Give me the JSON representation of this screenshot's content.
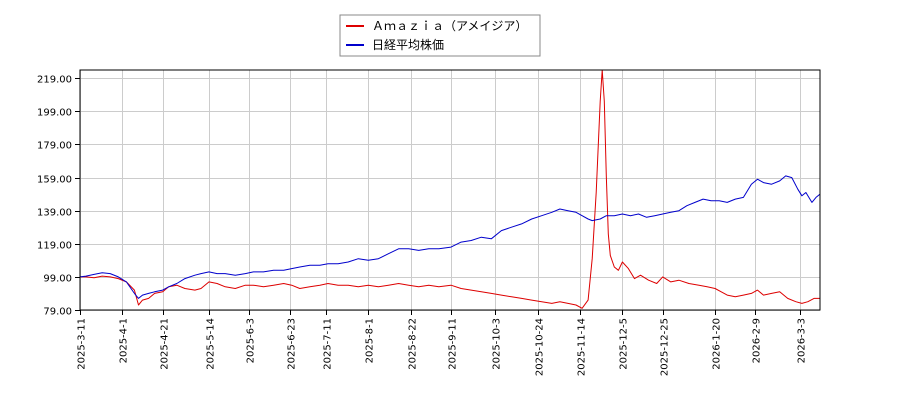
{
  "chart_data": {
    "type": "line",
    "title": "",
    "xlabel": "",
    "ylabel": "",
    "grid": true,
    "legend_position": "top-center",
    "ylim": [
      79.0,
      224.0
    ],
    "y_ticks": [
      "79.00",
      "99.00",
      "119.00",
      "139.00",
      "159.00",
      "179.00",
      "199.00",
      "219.00"
    ],
    "y_tick_values": [
      79,
      99,
      119,
      139,
      159,
      179,
      199,
      219
    ],
    "xlim": [
      "2025-03-11",
      "2026-03-13"
    ],
    "x_ticks": [
      "2025-3-11",
      "2025-4-1",
      "2025-4-21",
      "2025-5-14",
      "2025-6-3",
      "2025-6-23",
      "2025-7-11",
      "2025-8-1",
      "2025-8-22",
      "2025-9-11",
      "2025-10-3",
      "2025-10-24",
      "2025-11-14",
      "2025-12-5",
      "2025-12-25",
      "2026-1-20",
      "2026-2-9",
      "2026-3-3"
    ],
    "series": [
      {
        "name": "Ａｍａｚｉａ（アメイジア）",
        "color": "#dd0000",
        "points": [
          [
            "2025-03-11",
            99
          ],
          [
            "2025-03-14",
            99
          ],
          [
            "2025-03-18",
            98.5
          ],
          [
            "2025-03-22",
            99.5
          ],
          [
            "2025-03-26",
            99
          ],
          [
            "2025-03-30",
            98
          ],
          [
            "2025-04-03",
            96
          ],
          [
            "2025-04-07",
            91
          ],
          [
            "2025-04-09",
            82
          ],
          [
            "2025-04-11",
            85
          ],
          [
            "2025-04-14",
            86
          ],
          [
            "2025-04-17",
            89
          ],
          [
            "2025-04-21",
            90
          ],
          [
            "2025-04-24",
            93
          ],
          [
            "2025-04-28",
            94
          ],
          [
            "2025-05-02",
            92
          ],
          [
            "2025-05-07",
            91
          ],
          [
            "2025-05-10",
            92
          ],
          [
            "2025-05-14",
            96
          ],
          [
            "2025-05-18",
            95
          ],
          [
            "2025-05-22",
            93
          ],
          [
            "2025-05-27",
            92
          ],
          [
            "2025-06-01",
            94
          ],
          [
            "2025-06-05",
            94
          ],
          [
            "2025-06-10",
            93
          ],
          [
            "2025-06-15",
            94
          ],
          [
            "2025-06-20",
            95
          ],
          [
            "2025-06-24",
            94
          ],
          [
            "2025-06-28",
            92
          ],
          [
            "2025-07-03",
            93
          ],
          [
            "2025-07-08",
            94
          ],
          [
            "2025-07-12",
            95
          ],
          [
            "2025-07-17",
            94
          ],
          [
            "2025-07-22",
            94
          ],
          [
            "2025-07-27",
            93
          ],
          [
            "2025-08-01",
            94
          ],
          [
            "2025-08-06",
            93
          ],
          [
            "2025-08-11",
            94
          ],
          [
            "2025-08-16",
            95
          ],
          [
            "2025-08-21",
            94
          ],
          [
            "2025-08-26",
            93
          ],
          [
            "2025-08-31",
            94
          ],
          [
            "2025-09-05",
            93
          ],
          [
            "2025-09-11",
            94
          ],
          [
            "2025-09-16",
            92
          ],
          [
            "2025-09-21",
            91
          ],
          [
            "2025-09-26",
            90
          ],
          [
            "2025-10-01",
            89
          ],
          [
            "2025-10-06",
            88
          ],
          [
            "2025-10-11",
            87
          ],
          [
            "2025-10-16",
            86
          ],
          [
            "2025-10-21",
            85
          ],
          [
            "2025-10-26",
            84
          ],
          [
            "2025-10-31",
            83
          ],
          [
            "2025-11-04",
            84
          ],
          [
            "2025-11-08",
            83
          ],
          [
            "2025-11-12",
            82
          ],
          [
            "2025-11-15",
            80
          ],
          [
            "2025-11-18",
            85
          ],
          [
            "2025-11-20",
            110
          ],
          [
            "2025-11-22",
            150
          ],
          [
            "2025-11-24",
            205
          ],
          [
            "2025-11-25",
            224
          ],
          [
            "2025-11-26",
            205
          ],
          [
            "2025-11-27",
            160
          ],
          [
            "2025-11-28",
            125
          ],
          [
            "2025-11-29",
            112
          ],
          [
            "2025-12-01",
            105
          ],
          [
            "2025-12-03",
            103
          ],
          [
            "2025-12-05",
            108
          ],
          [
            "2025-12-08",
            104
          ],
          [
            "2025-12-11",
            98
          ],
          [
            "2025-12-14",
            100
          ],
          [
            "2025-12-18",
            97
          ],
          [
            "2025-12-22",
            95
          ],
          [
            "2025-12-25",
            99
          ],
          [
            "2025-12-29",
            96
          ],
          [
            "2026-01-02",
            97
          ],
          [
            "2026-01-07",
            95
          ],
          [
            "2026-01-12",
            94
          ],
          [
            "2026-01-16",
            93
          ],
          [
            "2026-01-20",
            92
          ],
          [
            "2026-01-23",
            90
          ],
          [
            "2026-01-26",
            88
          ],
          [
            "2026-01-30",
            87
          ],
          [
            "2026-02-03",
            88
          ],
          [
            "2026-02-07",
            89
          ],
          [
            "2026-02-10",
            91
          ],
          [
            "2026-02-13",
            88
          ],
          [
            "2026-02-17",
            89
          ],
          [
            "2026-02-21",
            90
          ],
          [
            "2026-02-25",
            86
          ],
          [
            "2026-03-01",
            84
          ],
          [
            "2026-03-04",
            83
          ],
          [
            "2026-03-07",
            84
          ],
          [
            "2026-03-10",
            86
          ],
          [
            "2026-03-13",
            86
          ]
        ]
      },
      {
        "name": "日経平均株価",
        "color": "#0000cc",
        "points": [
          [
            "2025-03-11",
            99
          ],
          [
            "2025-03-14",
            99.5
          ],
          [
            "2025-03-18",
            100.5
          ],
          [
            "2025-03-22",
            101.5
          ],
          [
            "2025-03-26",
            101
          ],
          [
            "2025-03-30",
            99
          ],
          [
            "2025-04-03",
            96
          ],
          [
            "2025-04-07",
            89
          ],
          [
            "2025-04-09",
            86
          ],
          [
            "2025-04-11",
            88
          ],
          [
            "2025-04-14",
            89
          ],
          [
            "2025-04-17",
            90
          ],
          [
            "2025-04-21",
            91
          ],
          [
            "2025-04-24",
            93
          ],
          [
            "2025-04-28",
            95
          ],
          [
            "2025-05-02",
            98
          ],
          [
            "2025-05-07",
            100
          ],
          [
            "2025-05-10",
            101
          ],
          [
            "2025-05-14",
            102
          ],
          [
            "2025-05-18",
            101
          ],
          [
            "2025-05-22",
            101
          ],
          [
            "2025-05-27",
            100
          ],
          [
            "2025-06-01",
            101
          ],
          [
            "2025-06-05",
            102
          ],
          [
            "2025-06-10",
            102
          ],
          [
            "2025-06-15",
            103
          ],
          [
            "2025-06-20",
            103
          ],
          [
            "2025-06-24",
            104
          ],
          [
            "2025-06-28",
            105
          ],
          [
            "2025-07-03",
            106
          ],
          [
            "2025-07-08",
            106
          ],
          [
            "2025-07-12",
            107
          ],
          [
            "2025-07-17",
            107
          ],
          [
            "2025-07-22",
            108
          ],
          [
            "2025-07-27",
            110
          ],
          [
            "2025-08-01",
            109
          ],
          [
            "2025-08-06",
            110
          ],
          [
            "2025-08-11",
            113
          ],
          [
            "2025-08-16",
            116
          ],
          [
            "2025-08-21",
            116
          ],
          [
            "2025-08-26",
            115
          ],
          [
            "2025-08-31",
            116
          ],
          [
            "2025-09-05",
            116
          ],
          [
            "2025-09-11",
            117
          ],
          [
            "2025-09-16",
            120
          ],
          [
            "2025-09-21",
            121
          ],
          [
            "2025-09-26",
            123
          ],
          [
            "2025-10-01",
            122
          ],
          [
            "2025-10-06",
            127
          ],
          [
            "2025-10-11",
            129
          ],
          [
            "2025-10-16",
            131
          ],
          [
            "2025-10-21",
            134
          ],
          [
            "2025-10-26",
            136
          ],
          [
            "2025-10-31",
            138
          ],
          [
            "2025-11-04",
            140
          ],
          [
            "2025-11-08",
            139
          ],
          [
            "2025-11-12",
            138
          ],
          [
            "2025-11-15",
            136
          ],
          [
            "2025-11-18",
            134
          ],
          [
            "2025-11-20",
            133
          ],
          [
            "2025-11-24",
            134
          ],
          [
            "2025-11-27",
            136
          ],
          [
            "2025-12-01",
            136
          ],
          [
            "2025-12-05",
            137
          ],
          [
            "2025-12-09",
            136
          ],
          [
            "2025-12-13",
            137
          ],
          [
            "2025-12-17",
            135
          ],
          [
            "2025-12-21",
            136
          ],
          [
            "2025-12-25",
            137
          ],
          [
            "2025-12-29",
            138
          ],
          [
            "2026-01-02",
            139
          ],
          [
            "2026-01-06",
            142
          ],
          [
            "2026-01-10",
            144
          ],
          [
            "2026-01-14",
            146
          ],
          [
            "2026-01-18",
            145
          ],
          [
            "2026-01-22",
            145
          ],
          [
            "2026-01-26",
            144
          ],
          [
            "2026-01-30",
            146
          ],
          [
            "2026-02-03",
            147
          ],
          [
            "2026-02-07",
            155
          ],
          [
            "2026-02-10",
            158
          ],
          [
            "2026-02-13",
            156
          ],
          [
            "2026-02-17",
            155
          ],
          [
            "2026-02-21",
            157
          ],
          [
            "2026-02-24",
            160
          ],
          [
            "2026-02-27",
            159
          ],
          [
            "2026-03-02",
            152
          ],
          [
            "2026-03-04",
            148
          ],
          [
            "2026-03-06",
            150
          ],
          [
            "2026-03-09",
            144
          ],
          [
            "2026-03-11",
            147
          ],
          [
            "2026-03-13",
            149
          ]
        ]
      }
    ]
  }
}
